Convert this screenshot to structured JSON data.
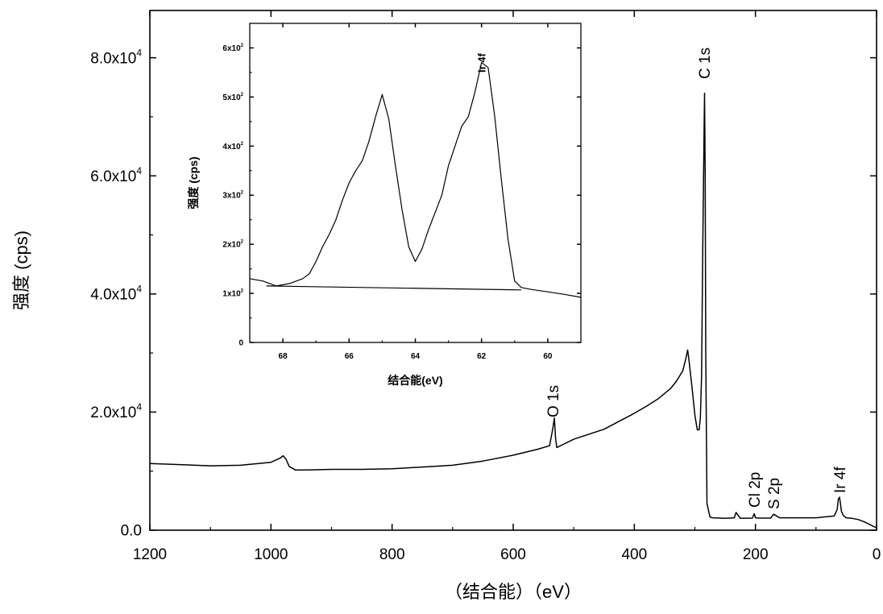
{
  "chart_data": [
    {
      "type": "line",
      "xlabel": "（结合能）（eV）",
      "ylabel": "强度  (cps)",
      "xlim": [
        1200,
        0
      ],
      "ylim": [
        0,
        88000
      ],
      "x_ticks": [
        1200,
        1000,
        800,
        600,
        400,
        200,
        0
      ],
      "y_ticks": [
        {
          "value": 0,
          "label": "0.0"
        },
        {
          "value": 20000,
          "label": "2.0x10^4"
        },
        {
          "value": 40000,
          "label": "4.0x10^4"
        },
        {
          "value": 60000,
          "label": "6.0x10^4"
        },
        {
          "value": 80000,
          "label": "8.0x10^4"
        }
      ],
      "annotations": [
        {
          "text": "O 1s",
          "x": 532
        },
        {
          "text": "C 1s",
          "x": 284
        },
        {
          "text": "Cl 2p",
          "x": 200
        },
        {
          "text": "S 2p",
          "x": 168
        },
        {
          "text": "Ir 4f",
          "x": 62
        }
      ],
      "series": [
        {
          "x": [
            1200,
            1150,
            1100,
            1050,
            1000,
            985,
            980,
            975,
            970,
            960,
            940,
            900,
            850,
            800,
            750,
            700,
            650,
            600,
            560,
            540,
            535,
            532,
            530,
            528,
            520,
            500,
            450,
            400,
            380,
            360,
            340,
            330,
            320,
            315,
            312,
            310,
            305,
            300,
            296,
            293,
            291,
            289,
            287,
            285,
            284,
            283,
            282,
            280,
            275,
            270,
            250,
            235,
            232,
            225,
            205,
            202,
            200,
            195,
            175,
            170,
            160,
            100,
            70,
            65,
            63,
            61,
            58,
            55,
            50,
            40,
            30,
            20,
            10,
            0
          ],
          "values": [
            11300,
            11100,
            10900,
            11000,
            11500,
            12200,
            12600,
            12000,
            10800,
            10200,
            10200,
            10300,
            10300,
            10400,
            10700,
            11000,
            11700,
            12700,
            13700,
            14300,
            17000,
            19000,
            15500,
            14000,
            14400,
            15400,
            17100,
            19800,
            21000,
            22300,
            24000,
            25300,
            27000,
            29000,
            30500,
            29000,
            24500,
            19500,
            17000,
            17000,
            19000,
            26000,
            48000,
            66000,
            74000,
            60000,
            30000,
            4500,
            2200,
            2100,
            2000,
            2100,
            3000,
            2000,
            2050,
            2800,
            2100,
            2050,
            2050,
            2700,
            2100,
            2100,
            2400,
            3500,
            5300,
            5600,
            3200,
            2500,
            2100,
            2000,
            1800,
            1400,
            900,
            400
          ]
        }
      ]
    },
    {
      "type": "line",
      "xlabel": "结合能(eV)",
      "ylabel": "强度  (cps)",
      "xlim": [
        69,
        59
      ],
      "ylim": [
        0,
        650
      ],
      "x_ticks": [
        68,
        66,
        64,
        62,
        60
      ],
      "y_ticks": [
        {
          "value": 0,
          "label": "0"
        },
        {
          "value": 100,
          "label": "1x10^2"
        },
        {
          "value": 200,
          "label": "2x10^2"
        },
        {
          "value": 300,
          "label": "3x10^2"
        },
        {
          "value": 400,
          "label": "4x10^2"
        },
        {
          "value": 500,
          "label": "5x10^2"
        },
        {
          "value": 600,
          "label": "6x10^2"
        }
      ],
      "annotations": [
        {
          "text": "Ir 4f",
          "x": 62
        }
      ],
      "series": [
        {
          "x": [
            69,
            68.6,
            68.2,
            67.8,
            67.4,
            67.2,
            67.0,
            66.8,
            66.6,
            66.4,
            66.2,
            66.0,
            65.8,
            65.6,
            65.4,
            65.2,
            65.0,
            64.8,
            64.6,
            64.4,
            64.2,
            64.0,
            63.8,
            63.6,
            63.4,
            63.2,
            63.0,
            62.8,
            62.6,
            62.4,
            62.2,
            62.0,
            61.8,
            61.6,
            61.4,
            61.2,
            61.0,
            60.8,
            60.5,
            60.0,
            59.5,
            59.0
          ],
          "values": [
            130,
            125,
            115,
            120,
            130,
            140,
            165,
            195,
            220,
            250,
            290,
            325,
            350,
            370,
            410,
            460,
            505,
            455,
            360,
            270,
            195,
            165,
            190,
            230,
            265,
            300,
            360,
            400,
            440,
            460,
            510,
            570,
            560,
            460,
            330,
            210,
            125,
            112,
            108,
            103,
            98,
            92
          ]
        },
        {
          "x": [
            68.5,
            60.8
          ],
          "values": [
            115,
            107
          ]
        }
      ]
    }
  ]
}
